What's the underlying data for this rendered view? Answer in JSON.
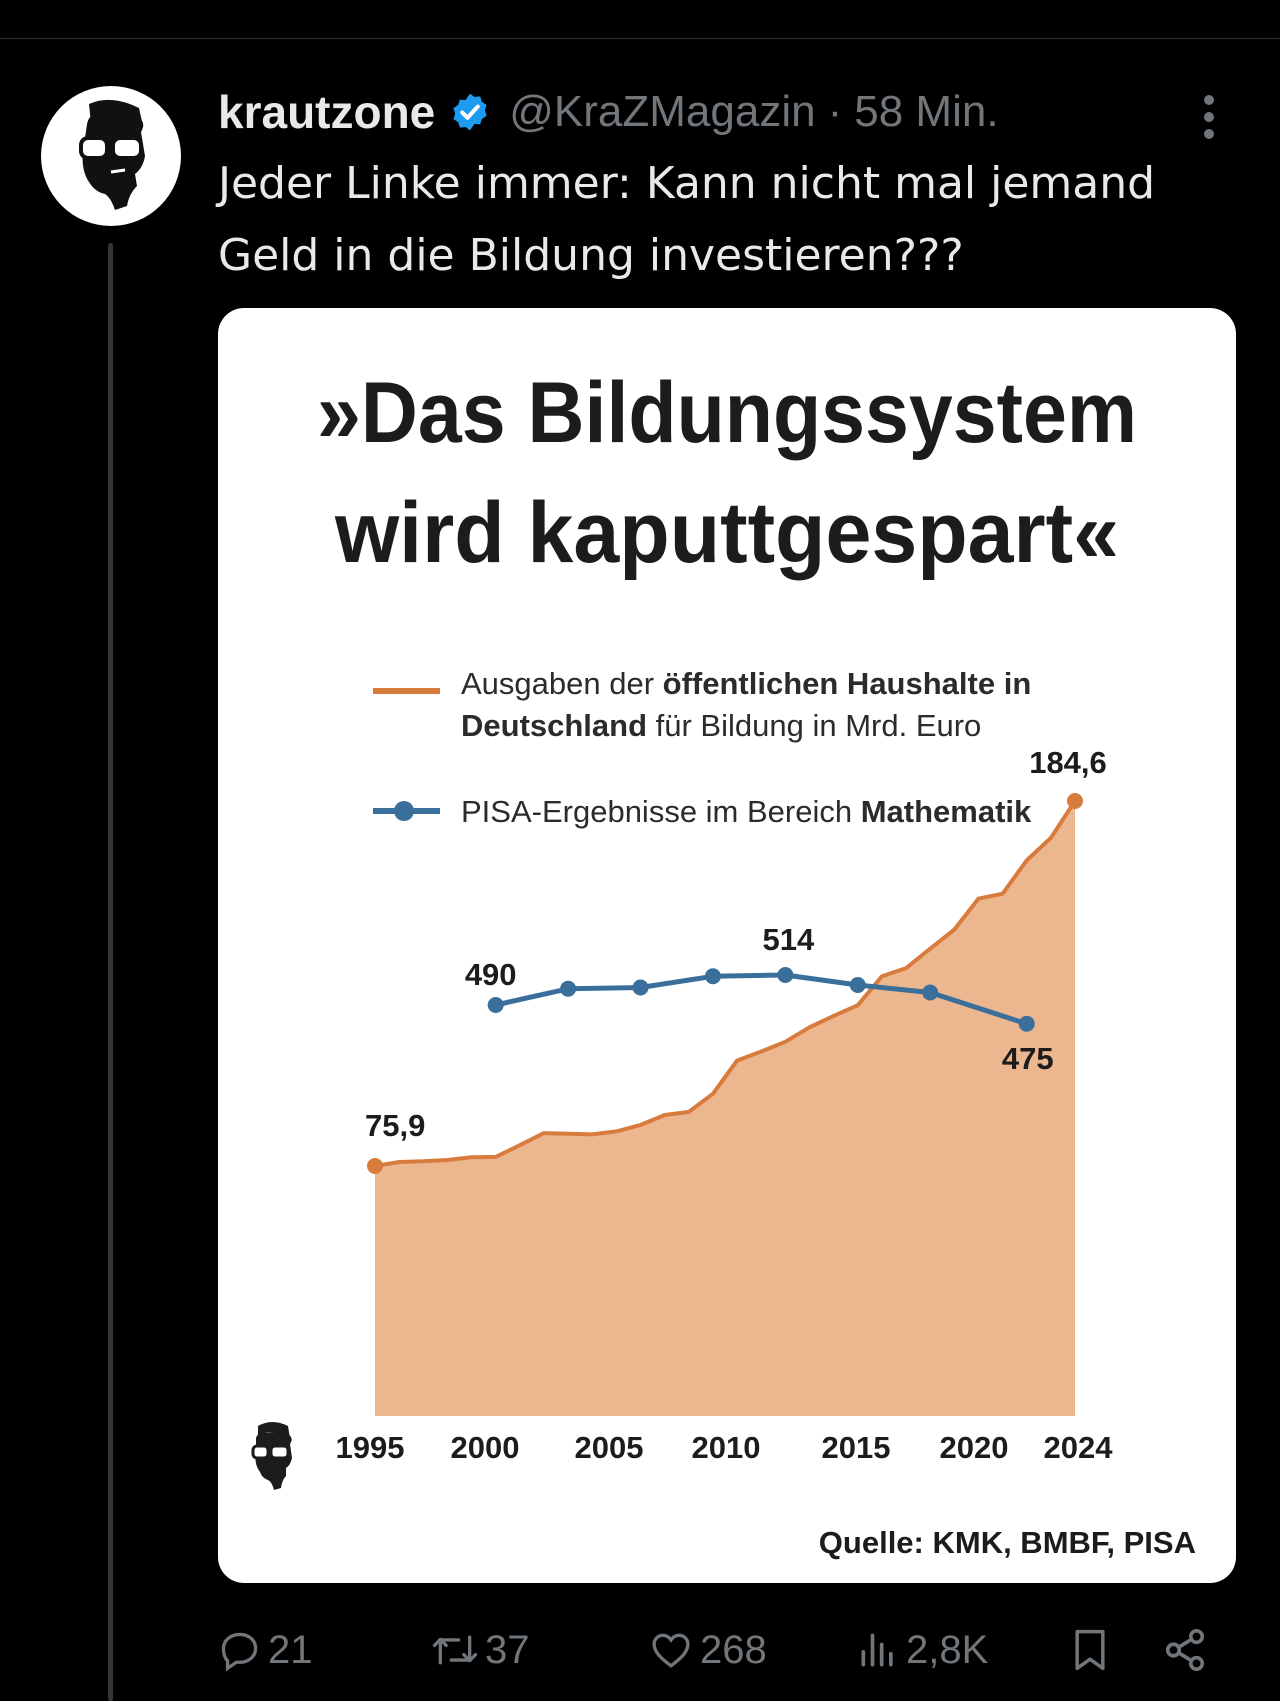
{
  "tweet": {
    "author": {
      "display_name": "krautzone",
      "handle": "@KraZMagazin",
      "separator": "·",
      "time": "58 Min."
    },
    "text_line1": "Jeder Linke immer: Kann nicht mal jemand",
    "text_line2": "Geld in die Bildung investieren???",
    "actions": {
      "replies": "21",
      "reposts": "37",
      "likes": "268",
      "views": "2,8K"
    }
  },
  "chart_data": {
    "type": "area",
    "title": "»Das Bildungssystem wird kaputtgespart«",
    "title_line1": "»Das Bildungssystem",
    "title_line2": "wird kaputtgespart«",
    "source": "Quelle: KMK, BMBF, PISA",
    "x_ticks": [
      "1995",
      "2000",
      "2005",
      "2010",
      "2015",
      "2020",
      "2024"
    ],
    "legend": [
      {
        "key": "spending",
        "line1_plain": "Ausgaben der ",
        "line1_bold": "öffentlichen Haushalte in",
        "line2_bold": "Deutschland",
        "line2_plain": " für Bildung in Mrd. Euro"
      },
      {
        "key": "pisa",
        "plain": "PISA-Ergebnisse im Bereich ",
        "bold": "Mathematik"
      }
    ],
    "colors": {
      "spending_line": "#d87c3e",
      "spending_fill": "#ecb68e",
      "pisa": "#3a6f9b"
    },
    "series": [
      {
        "key": "spending",
        "x": [
          1995,
          1996,
          1997,
          1998,
          1999,
          2000,
          2001,
          2002,
          2003,
          2004,
          2005,
          2006,
          2007,
          2008,
          2009,
          2010,
          2011,
          2012,
          2013,
          2014,
          2015,
          2016,
          2017,
          2018,
          2019,
          2020,
          2021,
          2022,
          2023,
          2024
        ],
        "y": [
          75.9,
          77.1,
          77.3,
          77.7,
          78.5,
          78.6,
          82.1,
          85.7,
          85.5,
          85.3,
          86.2,
          88.1,
          91.1,
          92.0,
          97.4,
          107.3,
          110.0,
          112.9,
          117.2,
          120.6,
          123.8,
          132.4,
          134.8,
          140.6,
          146.3,
          155.5,
          157.0,
          166.9,
          173.6,
          184.6
        ],
        "labels": [
          {
            "x": 1995,
            "text": "75,9"
          },
          {
            "x": 2024,
            "text": "184,6"
          }
        ]
      },
      {
        "key": "pisa",
        "x": [
          2000,
          2003,
          2006,
          2009,
          2012,
          2015,
          2018,
          2022
        ],
        "y": [
          490,
          503,
          504,
          513,
          514,
          506,
          500,
          475
        ],
        "labels": [
          {
            "x": 2000,
            "text": "490"
          },
          {
            "x": 2012,
            "text": "514"
          },
          {
            "x": 2022,
            "text": "475"
          }
        ]
      }
    ]
  }
}
